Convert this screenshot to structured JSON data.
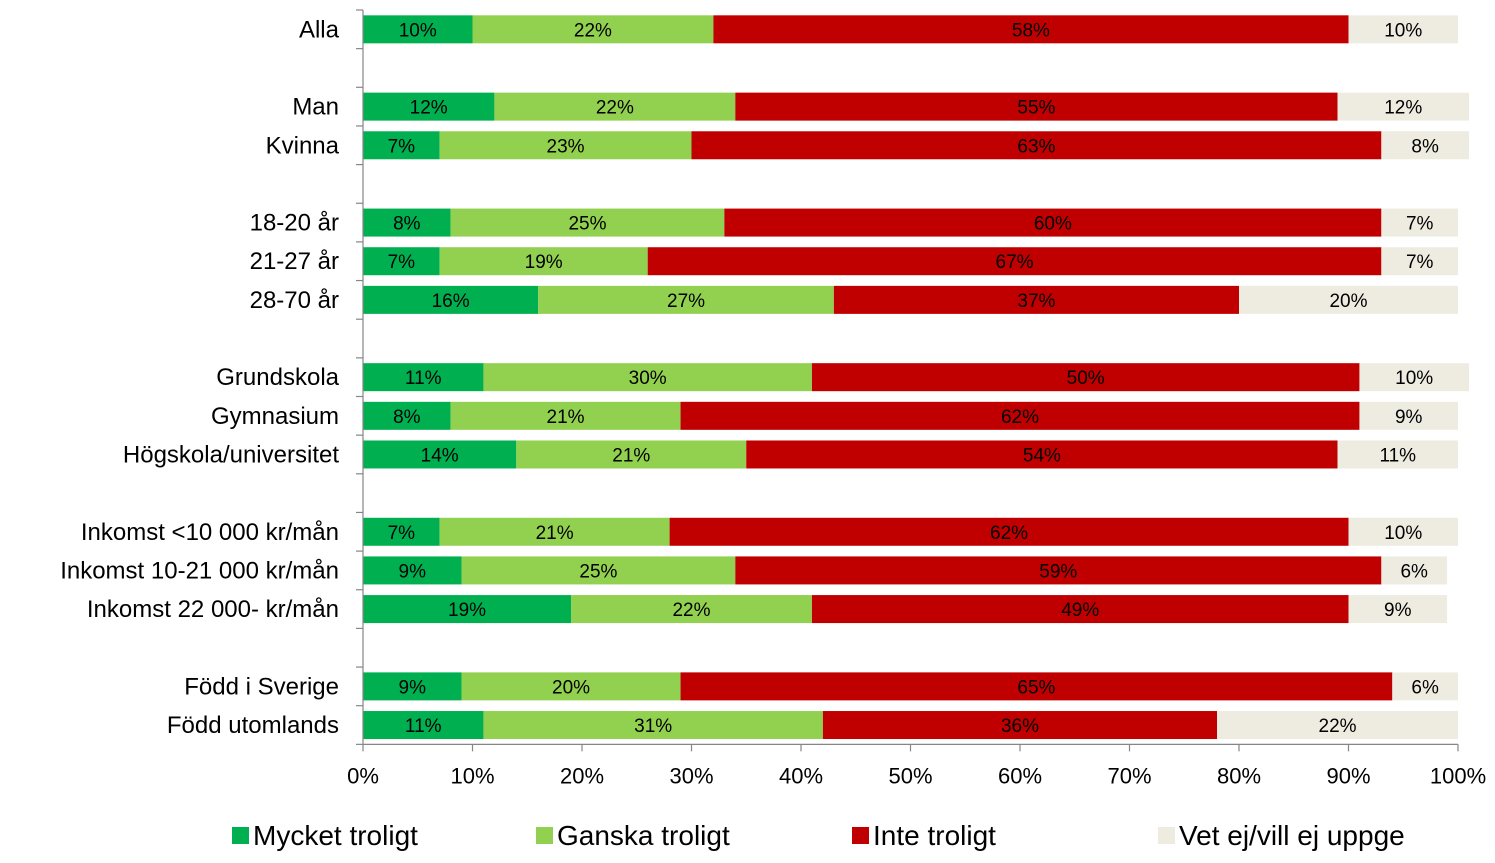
{
  "chart_data": {
    "type": "bar",
    "orientation": "horizontal",
    "stacked": true,
    "title": "",
    "xlabel": "",
    "ylabel": "",
    "xlim": [
      0,
      100
    ],
    "x_ticks": [
      "0%",
      "10%",
      "20%",
      "30%",
      "40%",
      "50%",
      "60%",
      "70%",
      "80%",
      "90%",
      "100%"
    ],
    "grid": false,
    "legend_position": "bottom",
    "categories": [
      "Alla",
      "",
      "Man",
      "Kvinna",
      "",
      "18-20 år",
      "21-27 år",
      "28-70 år",
      "",
      "Grundskola",
      "Gymnasium",
      "Högskola/universitet",
      "",
      "Inkomst <10 000 kr/mån",
      "Inkomst 10-21 000 kr/mån",
      "Inkomst 22 000- kr/mån",
      "",
      "Född i Sverige",
      "Född utomlands"
    ],
    "series": [
      {
        "name": "Mycket troligt",
        "color": "#00b050",
        "values": [
          10,
          null,
          12,
          7,
          null,
          8,
          7,
          16,
          null,
          11,
          8,
          14,
          null,
          7,
          9,
          19,
          null,
          9,
          11
        ],
        "labels": [
          "10%",
          "",
          "12%",
          "7%",
          "",
          "8%",
          "7%",
          "16%",
          "",
          "11%",
          "8%",
          "14%",
          "",
          "7%",
          "9%",
          "19%",
          "",
          "9%",
          "11%"
        ]
      },
      {
        "name": "Ganska troligt",
        "color": "#92d050",
        "values": [
          22,
          null,
          22,
          23,
          null,
          25,
          19,
          27,
          null,
          30,
          21,
          21,
          null,
          21,
          25,
          22,
          null,
          20,
          31
        ],
        "labels": [
          "22%",
          "",
          "22%",
          "23%",
          "",
          "25%",
          "19%",
          "27%",
          "",
          "30%",
          "21%",
          "21%",
          "",
          "21%",
          "25%",
          "22%",
          "",
          "20%",
          "31%"
        ]
      },
      {
        "name": "Inte troligt",
        "color": "#c00000",
        "values": [
          58,
          null,
          55,
          63,
          null,
          60,
          67,
          37,
          null,
          50,
          62,
          54,
          null,
          62,
          59,
          49,
          null,
          65,
          36
        ],
        "labels": [
          "58%",
          "",
          "55%",
          "63%",
          "",
          "60%",
          "67%",
          "37%",
          "",
          "50%",
          "62%",
          "54%",
          "",
          "62%",
          "59%",
          "49%",
          "",
          "65%",
          "36%"
        ]
      },
      {
        "name": "Vet ej/vill ej uppge",
        "color": "#eeece1",
        "values": [
          10,
          null,
          12,
          8,
          null,
          7,
          7,
          20,
          null,
          10,
          9,
          11,
          null,
          10,
          6,
          9,
          null,
          6,
          22
        ],
        "labels": [
          "10%",
          "",
          "12%",
          "8%",
          "",
          "7%",
          "7%",
          "20%",
          "",
          "10%",
          "9%",
          "11%",
          "",
          "10%",
          "6%",
          "9%",
          "",
          "6%",
          "22%"
        ]
      }
    ]
  }
}
